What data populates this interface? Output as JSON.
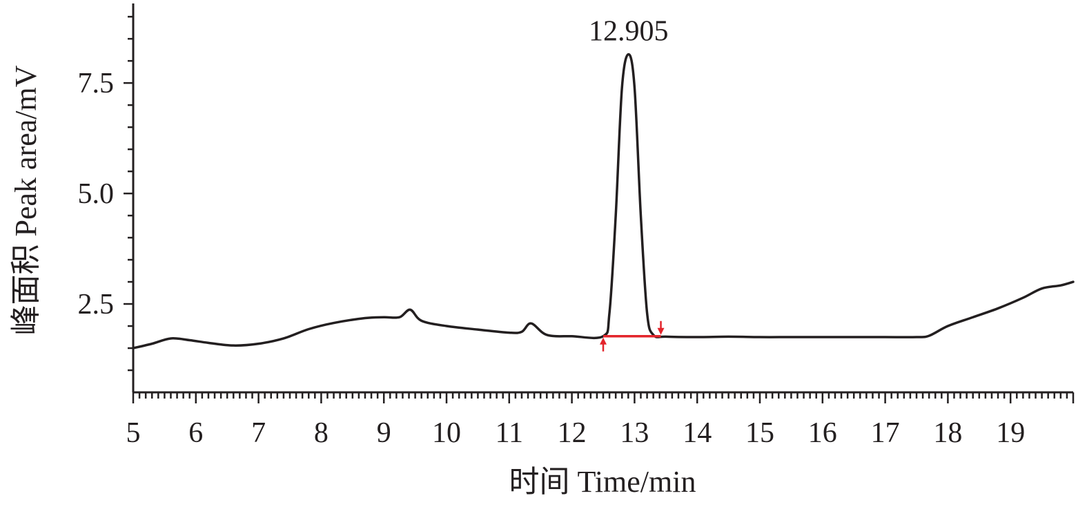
{
  "chart_data": {
    "type": "line",
    "xlabel": "时间 Time/min",
    "ylabel": "峰面积 Peak area/mV",
    "xlim": [
      5,
      20
    ],
    "ylim": [
      0.5,
      9.3
    ],
    "x_ticks": [
      5,
      6,
      7,
      8,
      9,
      10,
      11,
      12,
      13,
      14,
      15,
      16,
      17,
      18,
      19
    ],
    "y_ticks": [
      "2.5",
      "5.0",
      "7.5"
    ],
    "grid": false,
    "legend": "none",
    "series": [
      {
        "color": "#231f20",
        "x": [
          5.0,
          5.3,
          5.6,
          5.9,
          6.2,
          6.6,
          7.0,
          7.4,
          7.8,
          8.2,
          8.7,
          9.0,
          9.25,
          9.42,
          9.6,
          10.0,
          10.5,
          11.0,
          11.2,
          11.35,
          11.6,
          12.0,
          12.5,
          12.6,
          12.7,
          12.8,
          12.905,
          13.0,
          13.1,
          13.2,
          13.3,
          13.5,
          14.0,
          14.5,
          15.0,
          15.5,
          16.0,
          16.5,
          17.0,
          17.5,
          17.7,
          18.0,
          18.4,
          18.8,
          19.2,
          19.5,
          19.8,
          20.0
        ],
        "y": [
          1.5,
          1.6,
          1.72,
          1.68,
          1.62,
          1.56,
          1.6,
          1.72,
          1.93,
          2.07,
          2.18,
          2.2,
          2.2,
          2.37,
          2.12,
          2.0,
          1.92,
          1.85,
          1.87,
          2.06,
          1.8,
          1.77,
          1.77,
          2.3,
          4.5,
          7.4,
          8.15,
          7.4,
          4.5,
          2.3,
          1.8,
          1.76,
          1.75,
          1.76,
          1.75,
          1.75,
          1.75,
          1.75,
          1.75,
          1.75,
          1.78,
          2.0,
          2.2,
          2.4,
          2.64,
          2.85,
          2.92,
          3.0
        ]
      }
    ],
    "peak_label": {
      "text": "12.905",
      "x": 12.905,
      "y": 8.15
    },
    "integration_baseline": {
      "color": "#e3242b",
      "x_start": 12.5,
      "x_end": 13.42,
      "y_start": 1.77,
      "y_end": 1.77
    }
  }
}
